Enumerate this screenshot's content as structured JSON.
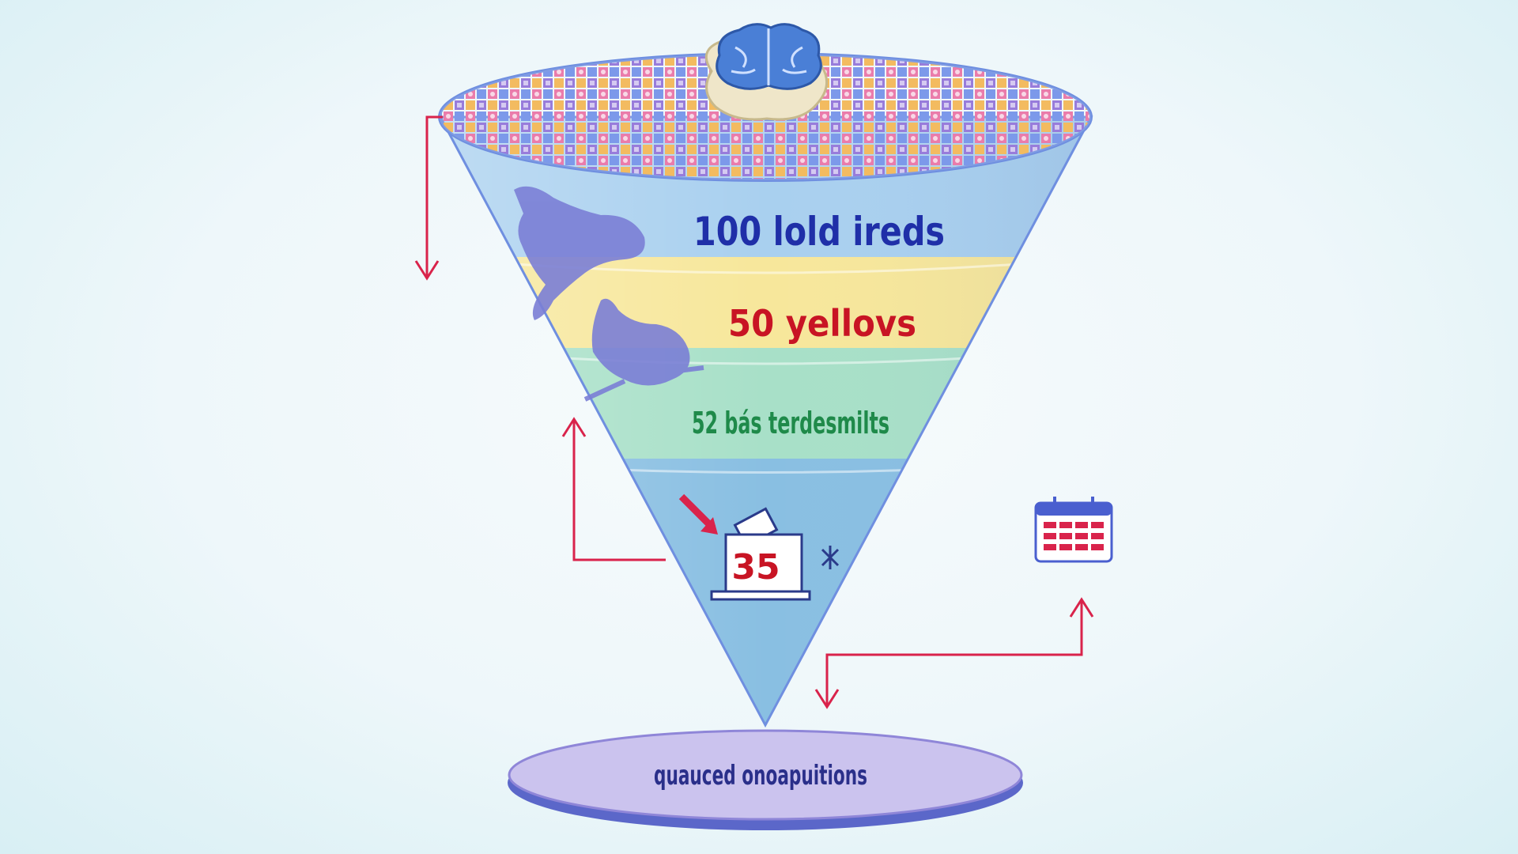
{
  "funnel": {
    "stages": [
      {
        "label": "100 lold ireds",
        "color": "#1f2fa8",
        "band": "#a9d0ef"
      },
      {
        "label": "50 yellovs",
        "color": "#c81424",
        "band": "#f7e79b"
      },
      {
        "label": "52 bás terdesmilts",
        "color": "#1f8a4a",
        "band": "#a8e0c8"
      },
      {
        "band": "#89bfe2"
      }
    ],
    "ballot_number": "35",
    "base_label": "quauced onoapuitions"
  },
  "colors": {
    "arrow": "#d9234b",
    "outline": "#6f8fe0",
    "brain": "#4a7fd6",
    "mascot": "#7b7fd6",
    "base": "#cbc3ee"
  },
  "icons": [
    "brain-icon",
    "calendar-icon",
    "ballot-box-icon",
    "mascot-figure"
  ]
}
